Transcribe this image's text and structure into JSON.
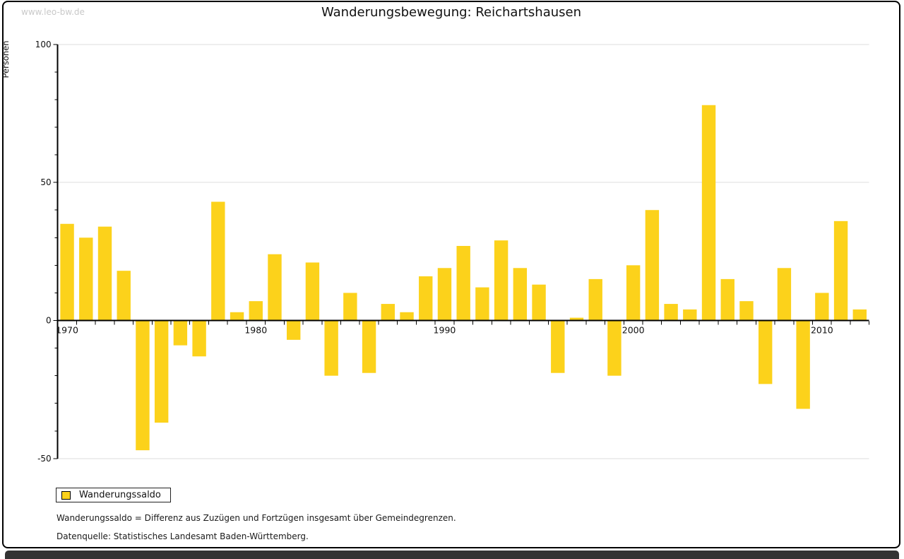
{
  "watermark": "www.leo-bw.de",
  "title": "Wanderungsbewegung: Reichartshausen",
  "legend": {
    "label": "Wanderungssaldo"
  },
  "footnotes": {
    "definition": "Wanderungssaldo = Differenz aus Zuzügen und Fortzügen insgesamt über Gemeindegrenzen.",
    "datasource": "Datenquelle: Statistisches Landesamt Baden-Württemberg."
  },
  "chart_data": {
    "type": "bar",
    "title": "Wanderungsbewegung: Reichartshausen",
    "ylabel": "Personen",
    "series_name": "Wanderungssaldo",
    "categories": [
      1970,
      1971,
      1972,
      1973,
      1974,
      1975,
      1976,
      1977,
      1978,
      1979,
      1980,
      1981,
      1982,
      1983,
      1984,
      1985,
      1986,
      1987,
      1988,
      1989,
      1990,
      1991,
      1992,
      1993,
      1994,
      1995,
      1996,
      1997,
      1998,
      1999,
      2000,
      2001,
      2002,
      2003,
      2004,
      2005,
      2006,
      2007,
      2008,
      2009,
      2010,
      2011,
      2012
    ],
    "values": [
      35,
      30,
      34,
      18,
      -47,
      -37,
      -9,
      -13,
      43,
      3,
      7,
      24,
      -7,
      21,
      -20,
      10,
      -19,
      6,
      3,
      16,
      19,
      27,
      12,
      29,
      19,
      13,
      -19,
      1,
      15,
      -20,
      20,
      40,
      6,
      4,
      78,
      15,
      7,
      -23,
      19,
      -32,
      10,
      36,
      4
    ],
    "ylim": [
      -50,
      100
    ],
    "y_major_ticks": [
      100,
      50,
      0,
      -50
    ],
    "y_minor_tick_step": 10,
    "x_labeled_ticks": [
      1970,
      1980,
      1990,
      2000,
      2010
    ],
    "gridline_values": [
      100,
      50,
      -50
    ],
    "grid": true,
    "legend_position": "bottom-left",
    "bar_color": "#FCD21B",
    "gridline_color": "#DDDDDD",
    "axis_color": "#000000"
  }
}
